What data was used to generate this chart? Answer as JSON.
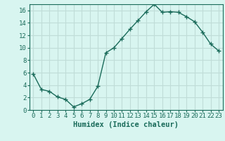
{
  "x": [
    0,
    1,
    2,
    3,
    4,
    5,
    6,
    7,
    8,
    9,
    10,
    11,
    12,
    13,
    14,
    15,
    16,
    17,
    18,
    19,
    20,
    21,
    22,
    23
  ],
  "y": [
    5.8,
    3.3,
    3.0,
    2.1,
    1.7,
    0.5,
    1.0,
    1.7,
    3.8,
    9.2,
    10.0,
    11.5,
    13.0,
    14.4,
    15.8,
    17.0,
    15.7,
    15.8,
    15.7,
    15.0,
    14.2,
    12.5,
    10.6,
    9.5
  ],
  "line_color": "#1a6b5a",
  "marker": "+",
  "marker_size": 4,
  "bg_color": "#d8f5f0",
  "grid_color": "#c0ddd8",
  "xlabel": "Humidex (Indice chaleur)",
  "xlim": [
    -0.5,
    23.5
  ],
  "ylim": [
    0,
    17
  ],
  "xticks": [
    0,
    1,
    2,
    3,
    4,
    5,
    6,
    7,
    8,
    9,
    10,
    11,
    12,
    13,
    14,
    15,
    16,
    17,
    18,
    19,
    20,
    21,
    22,
    23
  ],
  "yticks": [
    0,
    2,
    4,
    6,
    8,
    10,
    12,
    14,
    16
  ],
  "tick_label_fontsize": 6.5,
  "xlabel_fontsize": 7.5,
  "axis_color": "#1a6b5a"
}
